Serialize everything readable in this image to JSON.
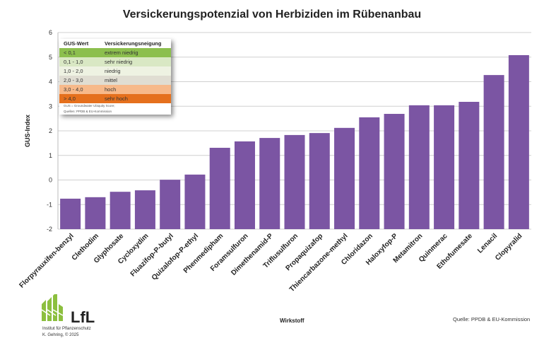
{
  "chart_data": {
    "type": "bar",
    "title": "Versickerungspotenzial von Herbiziden im Rübenanbau",
    "xlabel": "Wirkstoff",
    "ylabel": "GUS-Index",
    "ylim": [
      -2,
      6
    ],
    "yticks": [
      -2,
      -1,
      0,
      1,
      2,
      3,
      4,
      5,
      6
    ],
    "grid": true,
    "categories": [
      "Florpyrauxifen-benzyl",
      "Clethodim",
      "Glyphosate",
      "Cycloxydim",
      "Fluazifop-P-butyl",
      "Quizalofop-P-ethyl",
      "Phenmedipham",
      "Foramsulfuron",
      "Dimethenamid-P",
      "Triflusulfuron",
      "Propaquizafop",
      "Thiencarbazone-methyl",
      "Chloridazon",
      "Haloxyfop-P",
      "Metamitron",
      "Quinmerac",
      "Ethofumesate",
      "Lenacil",
      "Clopyralid"
    ],
    "values": [
      -0.76,
      -0.7,
      -0.48,
      -0.42,
      0.01,
      0.22,
      1.31,
      1.57,
      1.71,
      1.83,
      1.91,
      2.12,
      2.55,
      2.69,
      3.04,
      3.04,
      3.18,
      4.27,
      5.08
    ],
    "bar_color": "#7b55a3",
    "legend_table": {
      "headers": [
        "GUS-Wert",
        "Versickerungsneigung"
      ],
      "rows": [
        {
          "range": "< 0,1",
          "label": "extrem niedrig",
          "color": "#8cbf4e"
        },
        {
          "range": "0,1 - 1,0",
          "label": "sehr niedrig",
          "color": "#d9e8c4"
        },
        {
          "range": "1,0 - 2,0",
          "label": "niedrig",
          "color": "#eef2e2"
        },
        {
          "range": "2,0 - 3,0",
          "label": "mittel",
          "color": "#e0ddd2"
        },
        {
          "range": "3,0 - 4,0",
          "label": "hoch",
          "color": "#f7b98a"
        },
        {
          "range": "> 4,0",
          "label": "sehr hoch",
          "color": "#e5701d"
        }
      ],
      "note1": "GUS = Groundwater Ubiquity Score;",
      "note2": "Quellen: PPDB & EU-Kommission"
    }
  },
  "footer": {
    "logo": "LfL",
    "institute": "Institut für Pflanzenschutz",
    "author": "K. Gehring, © 2025",
    "source": "Quelle: PPDB & EU-Kommission"
  }
}
